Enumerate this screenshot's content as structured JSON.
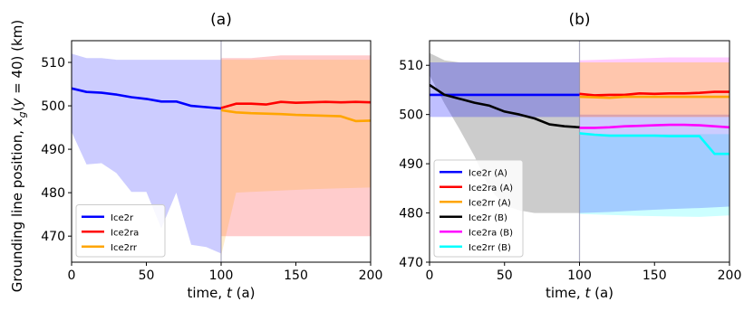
{
  "chart_data": [
    {
      "type": "line",
      "title": "(a)",
      "xlabel": "time, t (a)",
      "ylabel": "Grounding line position, x_g(y = 40) (km)",
      "xlim": [
        0,
        200
      ],
      "ylim": [
        464,
        515
      ],
      "xticks": [
        "0",
        "50",
        "100",
        "150",
        "200"
      ],
      "yticks": [
        "470",
        "480",
        "490",
        "500",
        "510"
      ],
      "ytick_values": [
        470,
        480,
        490,
        500,
        510
      ],
      "legend_position": "lower-left",
      "divider_x": 100,
      "series": [
        {
          "name": "Ice2r",
          "color": "#0000ff",
          "x": [
            0,
            10,
            20,
            30,
            40,
            50,
            60,
            70,
            80,
            90,
            100
          ],
          "y": [
            504,
            503.2,
            503,
            502.6,
            502,
            501.6,
            501,
            501,
            500,
            499.7,
            499.4
          ]
        },
        {
          "name": "Ice2ra",
          "color": "#ff0000",
          "x": [
            100,
            110,
            120,
            130,
            140,
            150,
            160,
            170,
            180,
            190,
            200
          ],
          "y": [
            499.5,
            500.5,
            500.5,
            500.3,
            500.9,
            500.7,
            500.8,
            500.9,
            500.8,
            500.9,
            500.8
          ]
        },
        {
          "name": "Ice2rr",
          "color": "#ffa500",
          "x": [
            100,
            110,
            120,
            130,
            140,
            150,
            160,
            170,
            180,
            190,
            200
          ],
          "y": [
            499,
            498.5,
            498.3,
            498.2,
            498.1,
            497.9,
            497.8,
            497.7,
            497.6,
            496.5,
            496.6
          ]
        }
      ],
      "bands": [
        {
          "name": "Ice2r",
          "color": "#0000ff",
          "opacity": 0.2,
          "x": [
            0,
            10,
            20,
            30,
            40,
            50,
            60,
            70,
            80,
            90,
            100
          ],
          "upper": [
            512,
            511,
            511,
            510.6,
            510.6,
            510.6,
            510.6,
            510.6,
            510.6,
            510.6,
            510.6
          ],
          "lower": [
            494,
            486.5,
            486.8,
            484.5,
            480.2,
            480.2,
            471.8,
            480,
            468,
            467.5,
            466
          ]
        },
        {
          "name": "Ice2ra",
          "color": "#ff0000",
          "opacity": 0.2,
          "x": [
            100,
            120,
            140,
            160,
            180,
            200
          ],
          "upper": [
            511,
            511,
            511.6,
            511.6,
            511.6,
            511.6
          ],
          "lower": [
            470,
            470,
            470,
            470,
            470,
            470
          ]
        },
        {
          "name": "Ice2rr",
          "color": "#ffa500",
          "opacity": 0.2,
          "x": [
            100,
            110,
            120,
            140,
            160,
            180,
            200
          ],
          "upper": [
            510.6,
            510.6,
            510.6,
            510.6,
            510.6,
            510.6,
            510.6
          ],
          "lower": [
            465.5,
            480,
            480.2,
            480.5,
            480.8,
            481,
            481.2
          ]
        }
      ],
      "band_floor": 464
    },
    {
      "type": "line",
      "title": "(b)",
      "xlabel": "time, t (a)",
      "ylabel": "",
      "xlim": [
        0,
        200
      ],
      "ylim": [
        470,
        515
      ],
      "xticks": [
        "0",
        "50",
        "100",
        "150",
        "200"
      ],
      "yticks": [
        "470",
        "480",
        "490",
        "500",
        "510"
      ],
      "ytick_values": [
        470,
        480,
        490,
        500,
        510
      ],
      "legend_position": "lower-left",
      "divider_x": 100,
      "series": [
        {
          "name": "Ice2r (A)",
          "color": "#0000ff",
          "x": [
            0,
            100
          ],
          "y": [
            504,
            504
          ]
        },
        {
          "name": "Ice2ra (A)",
          "color": "#ff0000",
          "x": [
            100,
            110,
            120,
            130,
            140,
            150,
            160,
            170,
            180,
            190,
            200
          ],
          "y": [
            504.2,
            503.9,
            504,
            504,
            504.3,
            504.2,
            504.3,
            504.3,
            504.4,
            504.6,
            504.6
          ]
        },
        {
          "name": "Ice2rr (A)",
          "color": "#ffa500",
          "x": [
            100,
            110,
            120,
            130,
            140,
            150,
            160,
            170,
            180,
            190,
            200
          ],
          "y": [
            503.6,
            503.5,
            503.4,
            503.6,
            503.6,
            503.6,
            503.6,
            503.6,
            503.6,
            503.6,
            503.6
          ]
        },
        {
          "name": "Ice2r (B)",
          "color": "#000000",
          "x": [
            0,
            10,
            20,
            30,
            40,
            50,
            60,
            70,
            80,
            90,
            100
          ],
          "y": [
            506,
            504,
            503.2,
            502.4,
            501.8,
            500.6,
            500,
            499.2,
            498,
            497.6,
            497.4
          ]
        },
        {
          "name": "Ice2ra (B)",
          "color": "#ff00ff",
          "x": [
            100,
            110,
            120,
            130,
            140,
            150,
            160,
            170,
            180,
            190,
            200
          ],
          "y": [
            497.3,
            497.3,
            497.4,
            497.6,
            497.7,
            497.8,
            497.9,
            497.9,
            497.8,
            497.6,
            497.4
          ]
        },
        {
          "name": "Ice2rr (B)",
          "color": "#00ffff",
          "x": [
            100,
            110,
            120,
            130,
            140,
            150,
            160,
            170,
            180,
            190,
            200
          ],
          "y": [
            496.2,
            495.9,
            495.7,
            495.7,
            495.7,
            495.7,
            495.6,
            495.6,
            495.6,
            492,
            492
          ]
        }
      ],
      "bands": [
        {
          "name": "Ice2r (B)",
          "color": "#000000",
          "opacity": 0.2,
          "x": [
            0,
            10,
            20,
            30,
            40,
            50,
            60,
            70,
            80,
            90,
            100
          ],
          "upper": [
            512.5,
            511,
            510.6,
            510.6,
            510.6,
            510.6,
            510.6,
            510.6,
            510.6,
            510.6,
            510.6
          ],
          "lower": [
            508,
            502.2,
            497,
            491.5,
            485,
            481.5,
            480.5,
            480,
            480,
            480,
            480
          ]
        },
        {
          "name": "Ice2r (A)",
          "color": "#0000ff",
          "opacity": 0.25,
          "x": [
            0,
            100
          ],
          "upper": [
            510.6,
            510.6
          ],
          "lower": [
            499.5,
            499.5
          ]
        },
        {
          "name": "Ice2rr (B)",
          "color": "#00ffff",
          "opacity": 0.2,
          "x": [
            100,
            120,
            140,
            160,
            180,
            200
          ],
          "upper": [
            496,
            496,
            496,
            496,
            496,
            496
          ],
          "lower": [
            479.8,
            479.6,
            479.4,
            479.3,
            479.2,
            479.5
          ]
        },
        {
          "name": "Ice2ra (B)",
          "color": "#0000ff",
          "opacity": 0.2,
          "x": [
            100,
            120,
            140,
            160,
            180,
            200
          ],
          "upper": [
            500,
            500,
            500,
            500,
            500,
            500
          ],
          "lower": [
            480,
            480.2,
            480.5,
            480.8,
            481,
            481.3
          ]
        },
        {
          "name": "Ice2ra (A)",
          "color": "#ff0000",
          "opacity": 0.2,
          "x": [
            100,
            120,
            140,
            160,
            180,
            200
          ],
          "upper": [
            510.6,
            510.6,
            510.6,
            510.6,
            510.6,
            510.6
          ],
          "lower": [
            499.5,
            499.5,
            499.5,
            499.5,
            499.5,
            499.5
          ]
        },
        {
          "name": "Ice2ra (B) upper",
          "color": "#ff00ff",
          "opacity": 0.2,
          "x": [
            100,
            120,
            140,
            160,
            180,
            200
          ],
          "upper": [
            511,
            511.2,
            511.4,
            511.6,
            511.6,
            511.6
          ],
          "lower": [
            510.6,
            510.6,
            510.6,
            510.6,
            510.6,
            510.6
          ]
        },
        {
          "name": "Ice2rr (A)",
          "color": "#ffa500",
          "opacity": 0.15,
          "x": [
            100,
            200
          ],
          "upper": [
            510.6,
            510.6
          ],
          "lower": [
            499.5,
            499.5
          ]
        }
      ]
    }
  ]
}
